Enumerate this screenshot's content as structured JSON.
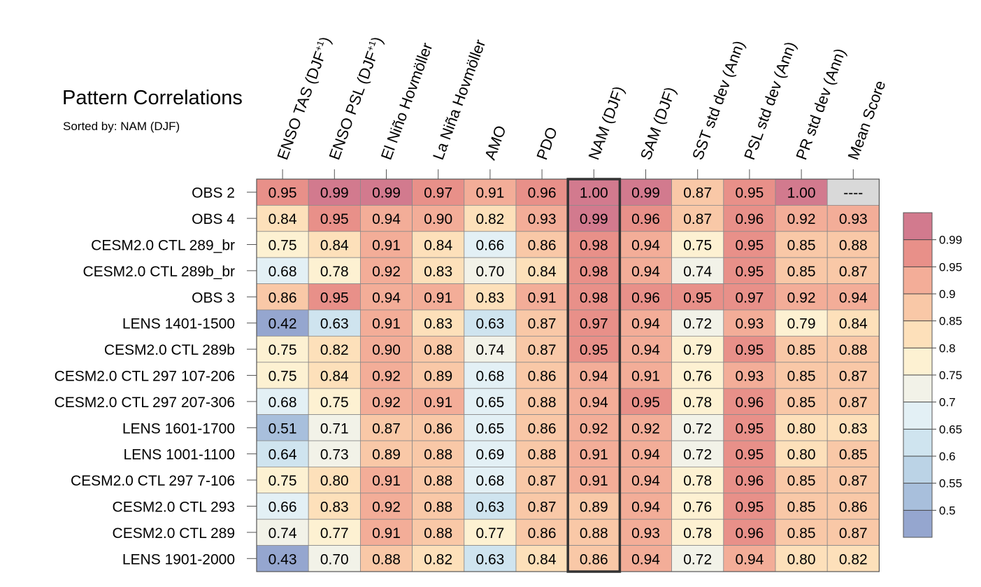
{
  "chart_data": {
    "type": "heatmap",
    "title": "Pattern Correlations",
    "subtitle": "Sorted by: NAM (DJF)",
    "highlighted_column": "NAM (DJF)",
    "columns": [
      {
        "name": "ENSO TAS (DJF+1)",
        "main": "ENSO TAS (DJF",
        "sup": "+1",
        "tail": ")"
      },
      {
        "name": "ENSO PSL (DJF+1)",
        "main": "ENSO PSL (DJF",
        "sup": "+1",
        "tail": ")"
      },
      {
        "name": "El Niño Hovmöller",
        "main": "El Niño Hovmöller"
      },
      {
        "name": "La Niña Hovmöller",
        "main": "La Niña Hovmöller"
      },
      {
        "name": "AMO",
        "main": "AMO"
      },
      {
        "name": "PDO",
        "main": "PDO"
      },
      {
        "name": "NAM (DJF)",
        "main": "NAM (DJF)"
      },
      {
        "name": "SAM (DJF)",
        "main": "SAM (DJF)"
      },
      {
        "name": "SST std dev (Ann)",
        "main": "SST std dev (Ann)"
      },
      {
        "name": "PSL std dev (Ann)",
        "main": "PSL std dev (Ann)"
      },
      {
        "name": "PR std dev (Ann)",
        "main": "PR std dev (Ann)"
      },
      {
        "name": "Mean Score",
        "main": "Mean Score"
      }
    ],
    "rows": [
      {
        "label": "OBS 2",
        "values": [
          "0.95",
          "0.99",
          "0.99",
          "0.97",
          "0.91",
          "0.96",
          "1.00",
          "0.99",
          "0.87",
          "0.95",
          "1.00",
          "----"
        ]
      },
      {
        "label": "OBS 4",
        "values": [
          "0.84",
          "0.95",
          "0.94",
          "0.90",
          "0.82",
          "0.93",
          "0.99",
          "0.96",
          "0.87",
          "0.96",
          "0.92",
          "0.93"
        ]
      },
      {
        "label": "CESM2.0 CTL 289_br",
        "values": [
          "0.75",
          "0.84",
          "0.91",
          "0.84",
          "0.66",
          "0.86",
          "0.98",
          "0.94",
          "0.75",
          "0.95",
          "0.85",
          "0.88"
        ]
      },
      {
        "label": "CESM2.0 CTL 289b_br",
        "values": [
          "0.68",
          "0.78",
          "0.92",
          "0.83",
          "0.70",
          "0.84",
          "0.98",
          "0.94",
          "0.74",
          "0.95",
          "0.85",
          "0.87"
        ]
      },
      {
        "label": "OBS 3",
        "values": [
          "0.86",
          "0.95",
          "0.94",
          "0.91",
          "0.83",
          "0.91",
          "0.98",
          "0.96",
          "0.95",
          "0.97",
          "0.92",
          "0.94"
        ]
      },
      {
        "label": "LENS 1401-1500",
        "values": [
          "0.42",
          "0.63",
          "0.91",
          "0.83",
          "0.63",
          "0.87",
          "0.97",
          "0.94",
          "0.72",
          "0.93",
          "0.79",
          "0.84"
        ]
      },
      {
        "label": "CESM2.0 CTL 289b",
        "values": [
          "0.75",
          "0.82",
          "0.90",
          "0.88",
          "0.74",
          "0.87",
          "0.95",
          "0.94",
          "0.79",
          "0.95",
          "0.85",
          "0.88"
        ]
      },
      {
        "label": "CESM2.0 CTL 297 107-206",
        "values": [
          "0.75",
          "0.84",
          "0.92",
          "0.89",
          "0.68",
          "0.86",
          "0.94",
          "0.91",
          "0.76",
          "0.93",
          "0.85",
          "0.87"
        ]
      },
      {
        "label": "CESM2.0 CTL 297 207-306",
        "values": [
          "0.68",
          "0.75",
          "0.92",
          "0.91",
          "0.65",
          "0.88",
          "0.94",
          "0.95",
          "0.78",
          "0.96",
          "0.85",
          "0.87"
        ]
      },
      {
        "label": "LENS 1601-1700",
        "values": [
          "0.51",
          "0.71",
          "0.87",
          "0.86",
          "0.65",
          "0.86",
          "0.92",
          "0.92",
          "0.72",
          "0.95",
          "0.80",
          "0.83"
        ]
      },
      {
        "label": "LENS 1001-1100",
        "values": [
          "0.64",
          "0.73",
          "0.89",
          "0.88",
          "0.69",
          "0.88",
          "0.91",
          "0.94",
          "0.72",
          "0.95",
          "0.80",
          "0.85"
        ]
      },
      {
        "label": "CESM2.0 CTL 297 7-106",
        "values": [
          "0.75",
          "0.80",
          "0.91",
          "0.88",
          "0.68",
          "0.87",
          "0.91",
          "0.94",
          "0.78",
          "0.96",
          "0.85",
          "0.87"
        ]
      },
      {
        "label": "CESM2.0 CTL 293",
        "values": [
          "0.66",
          "0.83",
          "0.92",
          "0.88",
          "0.63",
          "0.87",
          "0.89",
          "0.94",
          "0.76",
          "0.95",
          "0.85",
          "0.86"
        ]
      },
      {
        "label": "CESM2.0 CTL 289",
        "values": [
          "0.74",
          "0.77",
          "0.91",
          "0.88",
          "0.77",
          "0.86",
          "0.88",
          "0.93",
          "0.78",
          "0.96",
          "0.85",
          "0.87"
        ]
      },
      {
        "label": "LENS 1901-2000",
        "values": [
          "0.43",
          "0.70",
          "0.88",
          "0.82",
          "0.63",
          "0.84",
          "0.86",
          "0.94",
          "0.72",
          "0.94",
          "0.80",
          "0.82"
        ]
      }
    ],
    "missing_cell_color": "#d9d9d9",
    "colorbar": {
      "levels": [
        "0.5",
        "0.55",
        "0.6",
        "0.65",
        "0.7",
        "0.75",
        "0.8",
        "0.85",
        "0.9",
        "0.95",
        "0.99"
      ],
      "colors": [
        "#95a6cf",
        "#a8bfdc",
        "#bbd3e6",
        "#cfe4ef",
        "#e3f0f5",
        "#f2f2e8",
        "#fdf1d2",
        "#fde0ba",
        "#f9c8a7",
        "#f3ad98",
        "#e89089",
        "#d27a8e"
      ]
    }
  }
}
